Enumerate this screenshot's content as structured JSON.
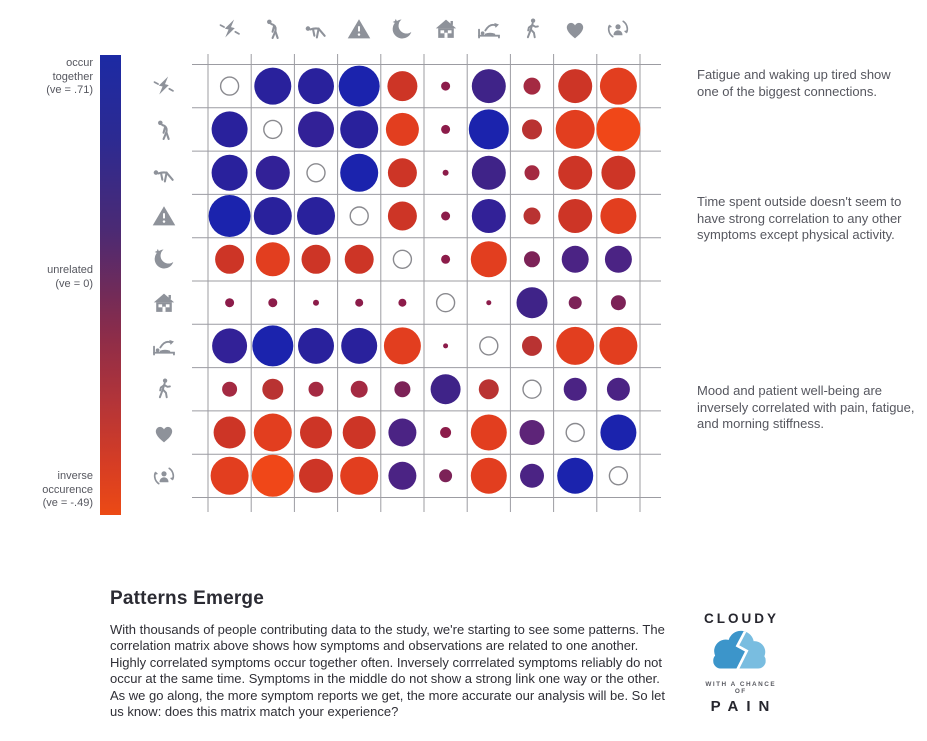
{
  "chart_data": {
    "type": "heatmap",
    "subtype": "correlation-matrix",
    "categories": [
      "pain",
      "fatigue",
      "morning-stiffness",
      "flare",
      "sleep-quality",
      "time-indoors",
      "waking-up-tired",
      "physical-activity",
      "mood",
      "patient-well-being"
    ],
    "icon_color": "#8e929a",
    "gridline_color": "#9c9ca2",
    "palette": [
      "#1b23ad",
      "#29219c",
      "#322197",
      "#3f2388",
      "#4b2384",
      "#5d2478",
      "#7c2257",
      "#8c1c4a",
      "#a42a42",
      "#b93332",
      "#cd3526",
      "#e23e1f",
      "#f04718"
    ],
    "open_circle": {
      "stroke": "#8a8a8f",
      "diameter": 18
    },
    "cells": [
      [
        "self",
        [
          1,
          37
        ],
        [
          1,
          36
        ],
        [
          0,
          41
        ],
        [
          10,
          30
        ],
        [
          7,
          9
        ],
        [
          3,
          34
        ],
        [
          8,
          17
        ],
        [
          10,
          34
        ],
        [
          11,
          37
        ]
      ],
      [
        [
          1,
          36
        ],
        "self",
        [
          2,
          36
        ],
        [
          1,
          38
        ],
        [
          11,
          33
        ],
        [
          7,
          9
        ],
        [
          0,
          40
        ],
        [
          9,
          20
        ],
        [
          11,
          39
        ],
        [
          12,
          44
        ]
      ],
      [
        [
          1,
          36
        ],
        [
          2,
          34
        ],
        "self",
        [
          0,
          38
        ],
        [
          10,
          29
        ],
        [
          7,
          6
        ],
        [
          3,
          34
        ],
        [
          8,
          15
        ],
        [
          10,
          34
        ],
        [
          10,
          34
        ]
      ],
      [
        [
          0,
          42
        ],
        [
          1,
          38
        ],
        [
          1,
          38
        ],
        "self",
        [
          10,
          29
        ],
        [
          7,
          9
        ],
        [
          2,
          34
        ],
        [
          9,
          17
        ],
        [
          10,
          34
        ],
        [
          11,
          36
        ]
      ],
      [
        [
          10,
          29
        ],
        [
          11,
          34
        ],
        [
          10,
          29
        ],
        [
          10,
          29
        ],
        "self",
        [
          7,
          9
        ],
        [
          11,
          36
        ],
        [
          6,
          16
        ],
        [
          4,
          27
        ],
        [
          4,
          27
        ]
      ],
      [
        [
          7,
          9
        ],
        [
          7,
          9
        ],
        [
          7,
          6
        ],
        [
          7,
          8
        ],
        [
          7,
          8
        ],
        "self",
        [
          7,
          5
        ],
        [
          3,
          31
        ],
        [
          6,
          13
        ],
        [
          6,
          15
        ]
      ],
      [
        [
          2,
          35
        ],
        [
          0,
          41
        ],
        [
          1,
          36
        ],
        [
          1,
          36
        ],
        [
          11,
          37
        ],
        [
          7,
          5
        ],
        "self",
        [
          9,
          20
        ],
        [
          11,
          38
        ],
        [
          11,
          38
        ]
      ],
      [
        [
          8,
          15
        ],
        [
          9,
          21
        ],
        [
          8,
          15
        ],
        [
          8,
          17
        ],
        [
          6,
          16
        ],
        [
          3,
          30
        ],
        [
          9,
          20
        ],
        "self",
        [
          4,
          23
        ],
        [
          4,
          23
        ]
      ],
      [
        [
          10,
          32
        ],
        [
          11,
          38
        ],
        [
          10,
          32
        ],
        [
          10,
          33
        ],
        [
          4,
          28
        ],
        [
          7,
          11
        ],
        [
          11,
          36
        ],
        [
          5,
          25
        ],
        "self",
        [
          0,
          36
        ]
      ],
      [
        [
          11,
          38
        ],
        [
          12,
          42
        ],
        [
          10,
          34
        ],
        [
          11,
          38
        ],
        [
          4,
          28
        ],
        [
          6,
          13
        ],
        [
          11,
          36
        ],
        [
          4,
          24
        ],
        [
          0,
          36
        ],
        "self"
      ]
    ],
    "scale": {
      "labels": {
        "top": "occur\ntogether\n(ve = .71)",
        "middle": "unrelated\n(ve = 0)",
        "bottom": "inverse\noccurence\n(ve = -.49)"
      },
      "gradient": [
        "#1c2aa4 0%",
        "#2c2a92 18%",
        "#4b2a74 38%",
        "#722b58 52%",
        "#8f2d48 62%",
        "#b23439 75%",
        "#d63d24 89%",
        "#ec4a15 100%"
      ]
    }
  },
  "annotations": [
    "Fatigue and waking up tired show one of the biggest connections.",
    "Time spent outside doesn't seem to have strong correlation to any other symptoms except physical activity.",
    "Mood and patient well-being are inversely correlated with pain, fatigue, and morning stiffness."
  ],
  "story": {
    "title": "Patterns Emerge",
    "body": "With thousands of  people contributing data to the study, we're starting to see some patterns. The correlation matrix above shows how symptoms and observations are related to one another. Highly correlated symptoms occur together often. Inversely corrrelated symptoms reliably do not occur at the same time. Symptoms in the middle do not show a strong link one way or the other. As we go along, the more symptom reports we get, the more accurate our analysis will be. So let us know: does this matrix match your experience?"
  },
  "logo": {
    "top": "CLOUDY",
    "middle": "WITH A CHANCE OF",
    "bottom": "PAIN",
    "cloud_dark": "#3c95ca",
    "cloud_light": "#79bde0"
  }
}
